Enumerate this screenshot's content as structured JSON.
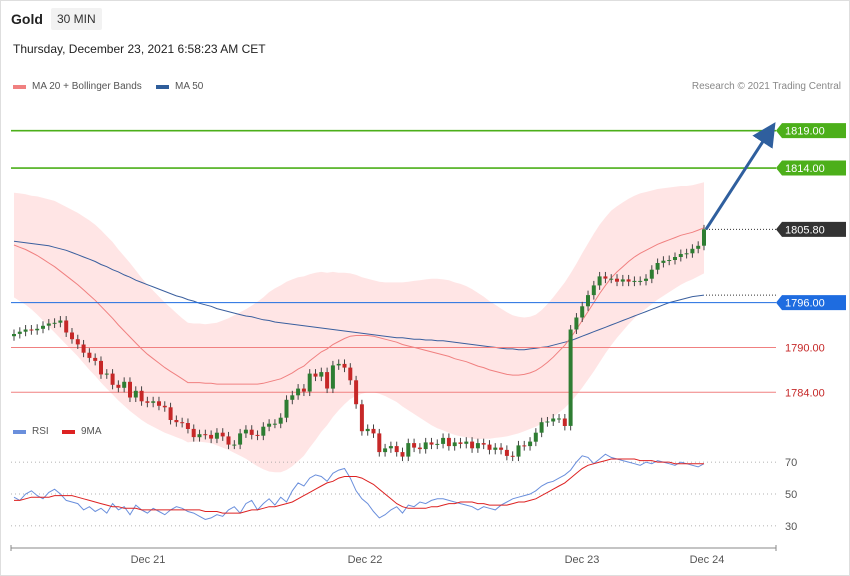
{
  "header": {
    "instrument": "Gold",
    "timeframe": "30 MIN",
    "datetime": "Thursday, December 23, 2021 6:58:23 AM CET"
  },
  "legend": {
    "ma20_label": "MA 20 + Bollinger Bands",
    "ma50_label": "MA 50",
    "credit": "Research © 2021 Trading Central",
    "rsi_label": "RSI",
    "rsi_ma_label": "9MA"
  },
  "colors": {
    "ma20": "#f08080",
    "ma50": "#3a5f9e",
    "bull_candle": "#2e7d32",
    "bear_candle": "#c62828",
    "resistance": "#4caf1a",
    "pivot": "#1e6ce0",
    "support": "#f08080",
    "last_price": "#333333",
    "arrow": "#2f5f9e",
    "rsi": "#6a8fdc",
    "rsi_ma": "#dd2222"
  },
  "chart_data": [
    {
      "type": "candlestick",
      "x_labels": [
        "Dec 21",
        "Dec 22",
        "Dec 23",
        "Dec 24"
      ],
      "ylim": [
        1781.9,
        1823.1
      ],
      "levels": [
        {
          "value": 1819.0,
          "label": "1819.00",
          "kind": "resistance"
        },
        {
          "value": 1814.0,
          "label": "1814.00",
          "kind": "resistance"
        },
        {
          "value": 1805.8,
          "label": "1805.80",
          "kind": "last"
        },
        {
          "value": 1796.0,
          "label": "1796.00",
          "kind": "pivot"
        },
        {
          "value": 1790.0,
          "label": "1790.00",
          "kind": "support"
        },
        {
          "value": 1784.0,
          "label": "1784.00",
          "kind": "support"
        }
      ],
      "arrow": {
        "from": 1805.8,
        "to": 1818.8
      },
      "close": [
        1791.8,
        1792.1,
        1792.4,
        1792.3,
        1792.5,
        1792.9,
        1793.2,
        1793.3,
        1793.6,
        1792.0,
        1791.1,
        1790.4,
        1789.3,
        1788.6,
        1788.2,
        1786.4,
        1786.5,
        1785.0,
        1784.6,
        1785.4,
        1783.3,
        1784.2,
        1782.8,
        1782.6,
        1782.8,
        1782.2,
        1782.0,
        1780.3,
        1780.0,
        1779.9,
        1779.1,
        1778.0,
        1778.4,
        1778.3,
        1777.8,
        1778.6,
        1778.1,
        1777.0,
        1777.0,
        1778.5,
        1779.0,
        1778.3,
        1778.2,
        1779.4,
        1779.8,
        1779.8,
        1780.6,
        1783.0,
        1783.6,
        1784.5,
        1784.1,
        1786.5,
        1786.1,
        1786.7,
        1784.5,
        1787.6,
        1787.8,
        1787.3,
        1785.6,
        1782.4,
        1778.8,
        1779.1,
        1778.5,
        1776.0,
        1776.5,
        1776.8,
        1776.0,
        1775.4,
        1777.2,
        1776.6,
        1776.4,
        1777.3,
        1777.0,
        1777.1,
        1777.9,
        1776.8,
        1777.3,
        1777.1,
        1777.4,
        1776.5,
        1777.2,
        1777.0,
        1776.3,
        1776.6,
        1776.3,
        1775.5,
        1775.4,
        1776.9,
        1776.8,
        1777.4,
        1778.6,
        1780.0,
        1780.1,
        1780.5,
        1780.5,
        1779.5,
        1792.4,
        1794.0,
        1795.5,
        1797.0,
        1798.3,
        1799.5,
        1799.2,
        1799.2,
        1798.8,
        1799.1,
        1798.8,
        1798.9,
        1798.9,
        1799.2,
        1800.4,
        1801.3,
        1801.6,
        1801.7,
        1802.1,
        1802.5,
        1802.6,
        1803.2,
        1803.6,
        1805.8
      ],
      "ma20": [
        1803.7,
        1803.4,
        1803.1,
        1802.7,
        1802.3,
        1801.8,
        1801.3,
        1800.8,
        1800.2,
        1799.6,
        1799.0,
        1798.4,
        1797.7,
        1797.0,
        1796.3,
        1795.5,
        1794.7,
        1793.9,
        1793.0,
        1792.2,
        1791.4,
        1790.6,
        1789.8,
        1789.1,
        1788.5,
        1787.9,
        1787.3,
        1786.8,
        1786.3,
        1785.8,
        1785.3,
        1785.3,
        1785.3,
        1785.2,
        1785.2,
        1785.1,
        1785.1,
        1785.1,
        1785.1,
        1785.1,
        1785.1,
        1785.1,
        1785.1,
        1785.2,
        1785.4,
        1785.6,
        1785.8,
        1786.2,
        1786.6,
        1787.1,
        1787.5,
        1788.2,
        1788.8,
        1789.4,
        1789.8,
        1790.4,
        1790.8,
        1791.2,
        1791.5,
        1791.6,
        1791.6,
        1791.6,
        1791.5,
        1791.3,
        1791.1,
        1790.9,
        1790.7,
        1790.4,
        1790.2,
        1790.0,
        1789.8,
        1789.6,
        1789.4,
        1789.2,
        1789.0,
        1788.8,
        1788.5,
        1788.3,
        1788.1,
        1787.8,
        1787.5,
        1787.3,
        1787.0,
        1786.8,
        1786.6,
        1786.4,
        1786.3,
        1786.3,
        1786.4,
        1786.6,
        1786.9,
        1787.4,
        1788.0,
        1788.7,
        1789.5,
        1790.3,
        1791.3,
        1792.4,
        1793.6,
        1794.8,
        1796.0,
        1797.2,
        1798.3,
        1799.3,
        1800.1,
        1800.8,
        1801.5,
        1802.1,
        1802.6,
        1803.0,
        1803.4,
        1803.8,
        1804.1,
        1804.4,
        1804.7,
        1805.0,
        1805.2,
        1805.4,
        1805.7,
        1806.0
      ],
      "ma50": [
        1804.2,
        1804.1,
        1804.0,
        1803.9,
        1803.8,
        1803.7,
        1803.6,
        1803.4,
        1803.2,
        1803.0,
        1802.7,
        1802.4,
        1802.1,
        1801.8,
        1801.5,
        1801.1,
        1800.8,
        1800.4,
        1800.1,
        1799.7,
        1799.4,
        1799.0,
        1798.7,
        1798.4,
        1798.1,
        1797.8,
        1797.5,
        1797.2,
        1796.9,
        1796.7,
        1796.4,
        1796.2,
        1795.9,
        1795.7,
        1795.5,
        1795.2,
        1795.0,
        1794.8,
        1794.6,
        1794.4,
        1794.2,
        1794.1,
        1793.9,
        1793.7,
        1793.6,
        1793.4,
        1793.3,
        1793.2,
        1793.1,
        1793.0,
        1792.9,
        1792.8,
        1792.7,
        1792.6,
        1792.5,
        1792.4,
        1792.3,
        1792.2,
        1792.1,
        1792.0,
        1791.9,
        1791.8,
        1791.7,
        1791.6,
        1791.5,
        1791.4,
        1791.3,
        1791.3,
        1791.2,
        1791.1,
        1791.1,
        1791.0,
        1791.0,
        1790.9,
        1790.9,
        1790.8,
        1790.7,
        1790.6,
        1790.5,
        1790.4,
        1790.3,
        1790.2,
        1790.1,
        1790.0,
        1789.9,
        1789.8,
        1789.8,
        1789.7,
        1789.7,
        1789.8,
        1789.9,
        1790.0,
        1790.1,
        1790.3,
        1790.5,
        1790.7,
        1790.9,
        1791.2,
        1791.5,
        1791.8,
        1792.1,
        1792.4,
        1792.7,
        1793.0,
        1793.3,
        1793.6,
        1793.9,
        1794.2,
        1794.5,
        1794.8,
        1795.1,
        1795.4,
        1795.7,
        1796.0,
        1796.2,
        1796.4,
        1796.6,
        1796.8,
        1796.9,
        1797.0
      ],
      "bb_width": [
        7.0,
        7.2,
        7.4,
        7.6,
        7.9,
        8.2,
        8.5,
        8.8,
        9.0,
        9.2,
        9.4,
        9.6,
        9.8,
        10.0,
        10.1,
        10.2,
        10.2,
        10.2,
        10.1,
        10.0,
        9.9,
        9.7,
        9.5,
        9.3,
        9.1,
        8.9,
        8.7,
        8.5,
        8.3,
        8.1,
        8.0,
        7.9,
        7.9,
        7.9,
        8.0,
        8.2,
        8.5,
        8.8,
        9.2,
        9.6,
        10.0,
        10.5,
        11.0,
        11.5,
        12.0,
        12.3,
        12.5,
        12.6,
        12.5,
        12.3,
        12.0,
        11.6,
        11.2,
        10.7,
        10.2,
        9.7,
        9.2,
        8.8,
        8.4,
        8.1,
        7.8,
        7.6,
        7.5,
        7.5,
        7.6,
        7.8,
        8.0,
        8.3,
        8.6,
        8.9,
        9.2,
        9.5,
        9.8,
        10.0,
        10.1,
        10.2,
        10.2,
        10.2,
        10.1,
        10.0,
        9.8,
        9.5,
        9.2,
        8.9,
        8.6,
        8.3,
        8.0,
        7.8,
        7.6,
        7.5,
        7.5,
        7.6,
        7.8,
        8.0,
        8.2,
        8.4,
        8.6,
        8.8,
        9.0,
        9.1,
        9.2,
        9.2,
        9.1,
        9.0,
        8.8,
        8.6,
        8.4,
        8.2,
        8.0,
        7.8,
        7.6,
        7.4,
        7.2,
        7.0,
        6.8,
        6.6,
        6.4,
        6.3,
        6.2,
        6.1
      ]
    },
    {
      "type": "line",
      "title": "RSI",
      "ylim": [
        23,
        77
      ],
      "y_ticks": [
        30,
        50,
        70
      ],
      "series": [
        {
          "name": "RSI",
          "values": [
            48,
            46,
            50,
            52,
            49,
            47,
            51,
            53,
            50,
            46,
            45,
            44,
            40,
            42,
            39,
            41,
            38,
            44,
            40,
            42,
            37,
            43,
            40,
            38,
            41,
            39,
            37,
            40,
            42,
            41,
            39,
            38,
            36,
            34,
            35,
            37,
            36,
            40,
            42,
            38,
            44,
            46,
            40,
            44,
            47,
            43,
            48,
            45,
            52,
            57,
            55,
            60,
            62,
            61,
            58,
            63,
            65,
            66,
            60,
            52,
            47,
            44,
            39,
            35,
            37,
            40,
            42,
            38,
            43,
            42,
            45,
            44,
            46,
            47,
            47,
            46,
            45,
            44,
            43,
            42,
            40,
            42,
            41,
            40,
            43,
            45,
            47,
            48,
            49,
            50,
            52,
            55,
            57,
            58,
            60,
            62,
            65,
            70,
            74,
            73,
            69,
            72,
            75,
            73,
            72,
            71,
            70,
            69,
            68,
            70,
            69,
            71,
            70,
            69,
            68,
            70,
            69,
            68,
            67,
            69
          ]
        },
        {
          "name": "9MA",
          "values": [
            46,
            46,
            47,
            48,
            48,
            48,
            48,
            49,
            49,
            49,
            49,
            48,
            47,
            46,
            45,
            44,
            43,
            42,
            42,
            41,
            41,
            41,
            40,
            40,
            40,
            40,
            40,
            40,
            40,
            40,
            40,
            40,
            40,
            39,
            39,
            39,
            38,
            38,
            38,
            38,
            39,
            40,
            40,
            41,
            42,
            42,
            43,
            44,
            45,
            47,
            49,
            51,
            53,
            55,
            57,
            58,
            60,
            61,
            61,
            61,
            60,
            58,
            56,
            53,
            50,
            47,
            44,
            42,
            41,
            41,
            41,
            41,
            42,
            42,
            43,
            44,
            44,
            45,
            45,
            45,
            44,
            44,
            43,
            43,
            43,
            43,
            44,
            45,
            45,
            46,
            47,
            49,
            51,
            53,
            55,
            57,
            60,
            63,
            66,
            68,
            69,
            70,
            71,
            72,
            72,
            72,
            72,
            72,
            71,
            71,
            71,
            70,
            70,
            70,
            69,
            69,
            69,
            69,
            69,
            69
          ]
        }
      ]
    }
  ]
}
